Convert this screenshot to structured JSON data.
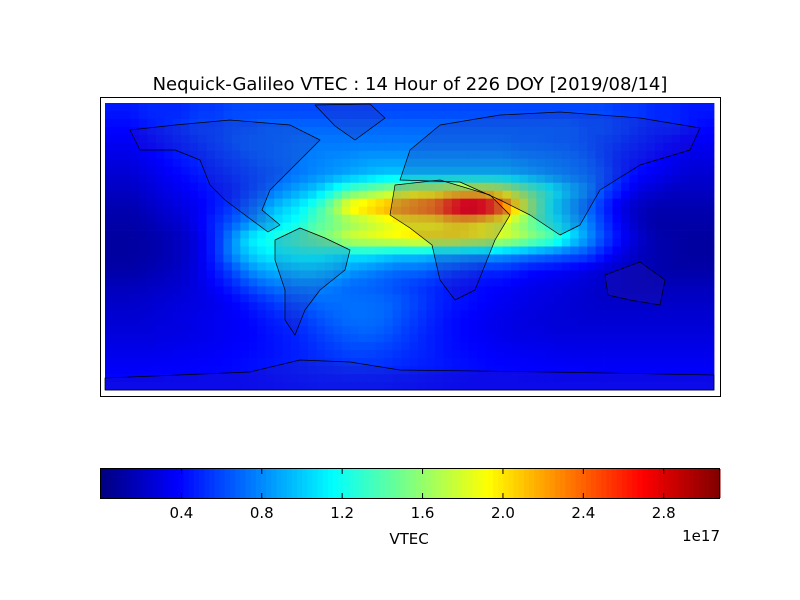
{
  "chart_data": {
    "type": "heatmap",
    "title": "Nequick-Galileo VTEC : 14 Hour of 226 DOY [2019/08/14]",
    "colormap": "jet",
    "vmin": 0.0,
    "vmax": 3.08,
    "colorbar": {
      "label": "VTEC",
      "ticks": [
        "0.4",
        "0.8",
        "1.2",
        "1.6",
        "2.0",
        "2.4",
        "2.8"
      ],
      "tick_values": [
        0.4,
        0.8,
        1.2,
        1.6,
        2.0,
        2.4,
        2.8
      ],
      "offset_label": "1e17",
      "placement": "bottom"
    },
    "value_unit_multiplier": "1e17",
    "grid_rows_north_to_south": [
      [
        0.45,
        0.45,
        0.5,
        0.5,
        0.5,
        0.55,
        0.55,
        0.6,
        0.6,
        0.6,
        0.6,
        0.6,
        0.6,
        0.6,
        0.6,
        0.6,
        0.6,
        0.6,
        0.6,
        0.6,
        0.6,
        0.6,
        0.6,
        0.6,
        0.6,
        0.6,
        0.6,
        0.6,
        0.6,
        0.6,
        0.55,
        0.55,
        0.5,
        0.5,
        0.45,
        0.45
      ],
      [
        0.4,
        0.4,
        0.45,
        0.5,
        0.55,
        0.6,
        0.6,
        0.65,
        0.65,
        0.7,
        0.7,
        0.7,
        0.7,
        0.7,
        0.7,
        0.7,
        0.7,
        0.7,
        0.7,
        0.7,
        0.7,
        0.7,
        0.7,
        0.7,
        0.7,
        0.7,
        0.7,
        0.7,
        0.65,
        0.65,
        0.6,
        0.55,
        0.5,
        0.5,
        0.45,
        0.4
      ],
      [
        0.35,
        0.35,
        0.4,
        0.45,
        0.5,
        0.55,
        0.6,
        0.65,
        0.7,
        0.7,
        0.72,
        0.75,
        0.75,
        0.75,
        0.75,
        0.75,
        0.75,
        0.75,
        0.75,
        0.75,
        0.75,
        0.75,
        0.75,
        0.75,
        0.72,
        0.72,
        0.7,
        0.7,
        0.65,
        0.6,
        0.55,
        0.5,
        0.45,
        0.4,
        0.35,
        0.35
      ],
      [
        0.3,
        0.3,
        0.35,
        0.4,
        0.45,
        0.5,
        0.55,
        0.6,
        0.65,
        0.7,
        0.72,
        0.75,
        0.78,
        0.8,
        0.82,
        0.85,
        0.85,
        0.85,
        0.85,
        0.85,
        0.85,
        0.85,
        0.85,
        0.85,
        0.82,
        0.8,
        0.78,
        0.75,
        0.7,
        0.6,
        0.5,
        0.45,
        0.4,
        0.35,
        0.3,
        0.3
      ],
      [
        0.25,
        0.25,
        0.3,
        0.35,
        0.4,
        0.45,
        0.5,
        0.55,
        0.6,
        0.65,
        0.7,
        0.75,
        0.8,
        0.85,
        0.9,
        0.95,
        1.0,
        1.0,
        1.0,
        1.0,
        1.0,
        1.0,
        1.0,
        1.0,
        0.95,
        0.9,
        0.85,
        0.8,
        0.75,
        0.65,
        0.5,
        0.4,
        0.35,
        0.3,
        0.25,
        0.25
      ],
      [
        0.2,
        0.2,
        0.25,
        0.3,
        0.35,
        0.4,
        0.45,
        0.5,
        0.6,
        0.7,
        0.8,
        0.9,
        1.0,
        1.2,
        1.4,
        1.5,
        1.6,
        1.7,
        1.8,
        1.8,
        1.9,
        1.9,
        1.9,
        1.8,
        1.6,
        1.4,
        1.2,
        1.0,
        0.85,
        0.6,
        0.45,
        0.3,
        0.25,
        0.2,
        0.2,
        0.2
      ],
      [
        0.15,
        0.15,
        0.2,
        0.25,
        0.3,
        0.35,
        0.45,
        0.55,
        0.7,
        0.85,
        1.0,
        1.1,
        1.3,
        1.6,
        2.0,
        2.1,
        2.2,
        2.3,
        2.4,
        2.5,
        2.8,
        3.0,
        2.9,
        2.5,
        2.0,
        1.5,
        1.1,
        0.9,
        0.7,
        0.5,
        0.3,
        0.2,
        0.15,
        0.15,
        0.15,
        0.15
      ],
      [
        0.12,
        0.12,
        0.15,
        0.2,
        0.25,
        0.35,
        0.5,
        0.65,
        0.8,
        1.0,
        1.1,
        1.2,
        1.4,
        1.5,
        1.6,
        1.7,
        1.8,
        1.9,
        1.9,
        1.9,
        2.0,
        2.0,
        1.9,
        1.8,
        1.6,
        1.4,
        1.2,
        1.0,
        0.8,
        0.55,
        0.35,
        0.2,
        0.12,
        0.12,
        0.12,
        0.12
      ],
      [
        0.1,
        0.1,
        0.12,
        0.15,
        0.2,
        0.3,
        0.5,
        0.8,
        1.1,
        1.2,
        1.3,
        1.4,
        1.5,
        1.6,
        1.8,
        1.85,
        1.9,
        1.95,
        2.0,
        2.0,
        2.0,
        1.95,
        1.9,
        1.8,
        1.7,
        1.55,
        1.4,
        1.1,
        0.85,
        0.6,
        0.4,
        0.25,
        0.15,
        0.12,
        0.1,
        0.1
      ],
      [
        0.1,
        0.1,
        0.12,
        0.15,
        0.2,
        0.3,
        0.5,
        0.8,
        1.0,
        1.1,
        1.15,
        1.2,
        1.2,
        1.15,
        1.1,
        1.1,
        1.05,
        1.0,
        1.0,
        0.95,
        0.95,
        0.9,
        0.9,
        0.85,
        0.8,
        0.75,
        0.7,
        0.65,
        0.6,
        0.45,
        0.3,
        0.2,
        0.15,
        0.12,
        0.1,
        0.1
      ],
      [
        0.12,
        0.12,
        0.15,
        0.18,
        0.22,
        0.3,
        0.45,
        0.6,
        0.8,
        0.9,
        0.95,
        1.0,
        1.0,
        0.95,
        0.85,
        0.8,
        0.75,
        0.7,
        0.7,
        0.65,
        0.6,
        0.55,
        0.5,
        0.5,
        0.45,
        0.4,
        0.38,
        0.35,
        0.3,
        0.25,
        0.2,
        0.18,
        0.15,
        0.12,
        0.12,
        0.12
      ],
      [
        0.18,
        0.18,
        0.2,
        0.22,
        0.25,
        0.3,
        0.38,
        0.48,
        0.6,
        0.7,
        0.75,
        0.8,
        0.8,
        0.75,
        0.7,
        0.68,
        0.65,
        0.6,
        0.55,
        0.5,
        0.45,
        0.42,
        0.4,
        0.38,
        0.35,
        0.32,
        0.3,
        0.28,
        0.25,
        0.22,
        0.2,
        0.18,
        0.18,
        0.18,
        0.18,
        0.18
      ],
      [
        0.22,
        0.22,
        0.24,
        0.26,
        0.28,
        0.3,
        0.33,
        0.38,
        0.45,
        0.52,
        0.6,
        0.65,
        0.7,
        0.72,
        0.72,
        0.72,
        0.7,
        0.65,
        0.58,
        0.5,
        0.45,
        0.42,
        0.38,
        0.35,
        0.32,
        0.3,
        0.28,
        0.26,
        0.24,
        0.22,
        0.22,
        0.22,
        0.22,
        0.22,
        0.22,
        0.22
      ],
      [
        0.25,
        0.25,
        0.26,
        0.28,
        0.3,
        0.32,
        0.34,
        0.36,
        0.4,
        0.45,
        0.5,
        0.55,
        0.62,
        0.68,
        0.72,
        0.72,
        0.7,
        0.62,
        0.55,
        0.48,
        0.42,
        0.38,
        0.35,
        0.32,
        0.3,
        0.28,
        0.27,
        0.26,
        0.25,
        0.25,
        0.25,
        0.25,
        0.25,
        0.25,
        0.25,
        0.25
      ],
      [
        0.28,
        0.28,
        0.28,
        0.3,
        0.3,
        0.32,
        0.34,
        0.36,
        0.38,
        0.42,
        0.46,
        0.5,
        0.56,
        0.62,
        0.66,
        0.68,
        0.65,
        0.58,
        0.52,
        0.46,
        0.42,
        0.38,
        0.35,
        0.32,
        0.3,
        0.3,
        0.28,
        0.28,
        0.28,
        0.28,
        0.28,
        0.28,
        0.28,
        0.28,
        0.28,
        0.28
      ],
      [
        0.32,
        0.32,
        0.32,
        0.33,
        0.34,
        0.35,
        0.36,
        0.38,
        0.4,
        0.42,
        0.45,
        0.48,
        0.52,
        0.56,
        0.6,
        0.6,
        0.58,
        0.54,
        0.5,
        0.46,
        0.42,
        0.4,
        0.38,
        0.36,
        0.35,
        0.34,
        0.33,
        0.32,
        0.32,
        0.32,
        0.32,
        0.32,
        0.32,
        0.32,
        0.32,
        0.32
      ],
      [
        0.36,
        0.36,
        0.36,
        0.37,
        0.38,
        0.38,
        0.39,
        0.4,
        0.42,
        0.44,
        0.46,
        0.48,
        0.5,
        0.52,
        0.54,
        0.54,
        0.53,
        0.5,
        0.48,
        0.46,
        0.44,
        0.42,
        0.4,
        0.39,
        0.38,
        0.38,
        0.37,
        0.37,
        0.36,
        0.36,
        0.36,
        0.36,
        0.36,
        0.36,
        0.36,
        0.36
      ],
      [
        0.4,
        0.4,
        0.4,
        0.4,
        0.4,
        0.4,
        0.4,
        0.4,
        0.41,
        0.42,
        0.43,
        0.44,
        0.45,
        0.45,
        0.45,
        0.45,
        0.45,
        0.44,
        0.43,
        0.42,
        0.41,
        0.4,
        0.4,
        0.4,
        0.4,
        0.4,
        0.4,
        0.4,
        0.4,
        0.4,
        0.4,
        0.4,
        0.4,
        0.4,
        0.4,
        0.4
      ]
    ]
  }
}
